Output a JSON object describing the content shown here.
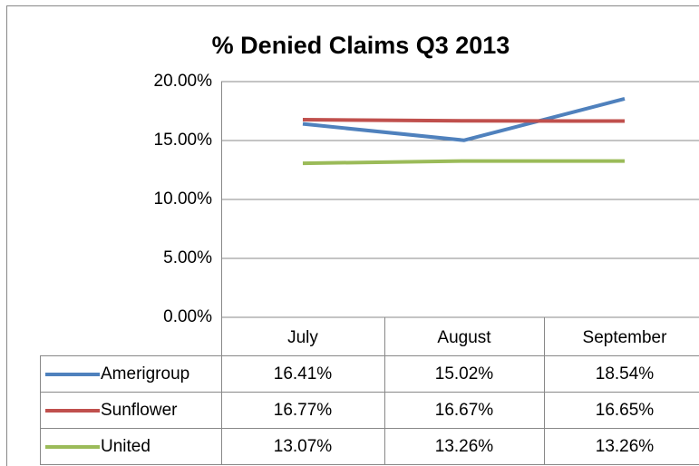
{
  "chart_data": {
    "type": "line",
    "title": "% Denied Claims  Q3 2013",
    "categories": [
      "July",
      "August",
      "September"
    ],
    "series": [
      {
        "name": "Amerigroup",
        "color": "#4f81bd",
        "values": [
          16.41,
          15.02,
          18.54
        ],
        "value_labels": [
          "16.41%",
          "15.02%",
          "18.54%"
        ]
      },
      {
        "name": "Sunflower",
        "color": "#c0504d",
        "values": [
          16.77,
          16.67,
          16.65
        ],
        "value_labels": [
          "16.77%",
          "16.67%",
          "16.65%"
        ]
      },
      {
        "name": "United",
        "color": "#9bbb59",
        "values": [
          13.07,
          13.26,
          13.26
        ],
        "value_labels": [
          "13.07%",
          "13.26%",
          "13.26%"
        ]
      }
    ],
    "ylim": [
      0,
      20
    ],
    "yticks": [
      {
        "value": 0,
        "label": "0.00%"
      },
      {
        "value": 5,
        "label": "5.00%"
      },
      {
        "value": 10,
        "label": "10.00%"
      },
      {
        "value": 15,
        "label": "15.00%"
      },
      {
        "value": 20,
        "label": "20.00%"
      }
    ],
    "grid": true,
    "data_table": true
  }
}
